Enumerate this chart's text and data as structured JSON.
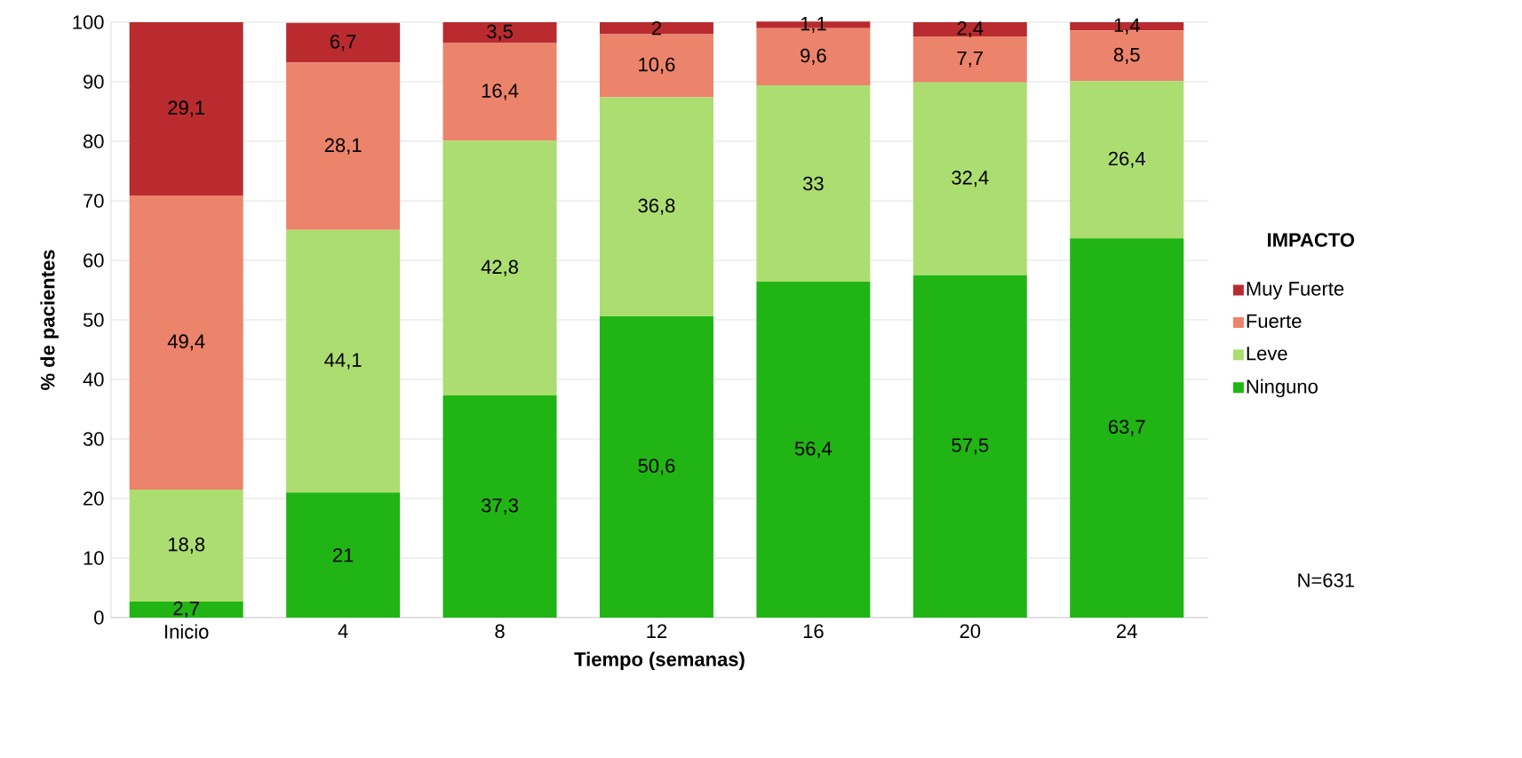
{
  "chart_data": {
    "type": "bar",
    "stacked": true,
    "xlabel": "Tiempo (semanas)",
    "ylabel": "% de pacientes",
    "legend_title": "IMPACTO",
    "legend": "right",
    "grid": "y",
    "categories": [
      "Inicio",
      "4",
      "8",
      "12",
      "16",
      "20",
      "24"
    ],
    "ylim": [
      0,
      100
    ],
    "yticks": [
      0,
      10,
      20,
      30,
      40,
      50,
      60,
      70,
      80,
      90,
      100
    ],
    "series": [
      {
        "name": "Ninguno",
        "color": "#20b514",
        "values": [
          2.7,
          21,
          37.3,
          50.6,
          56.4,
          57.5,
          63.7
        ],
        "value_labels": [
          "2,7",
          "21",
          "37,3",
          "50,6",
          "56,4",
          "57,5",
          "63,7"
        ]
      },
      {
        "name": "Leve",
        "color": "#acdd70",
        "values": [
          18.8,
          44.1,
          42.8,
          36.8,
          33,
          32.4,
          26.4
        ],
        "value_labels": [
          "18,8",
          "44,1",
          "42,8",
          "36,8",
          "33",
          "32,4",
          "26,4"
        ]
      },
      {
        "name": "Fuerte",
        "color": "#ec836b",
        "values": [
          49.4,
          28.1,
          16.4,
          10.6,
          9.6,
          7.7,
          8.5
        ],
        "value_labels": [
          "49,4",
          "28,1",
          "16,4",
          "10,6",
          "9,6",
          "7,7",
          "8,5"
        ]
      },
      {
        "name": "Muy Fuerte",
        "color": "#b92b2f",
        "values": [
          29.1,
          6.7,
          3.5,
          2,
          1.1,
          2.4,
          1.4
        ],
        "value_labels": [
          "29,1",
          "6,7",
          "3,5",
          "2",
          "1,1",
          "2,4",
          "1,4"
        ]
      }
    ],
    "annotations": [
      "N=631"
    ]
  }
}
